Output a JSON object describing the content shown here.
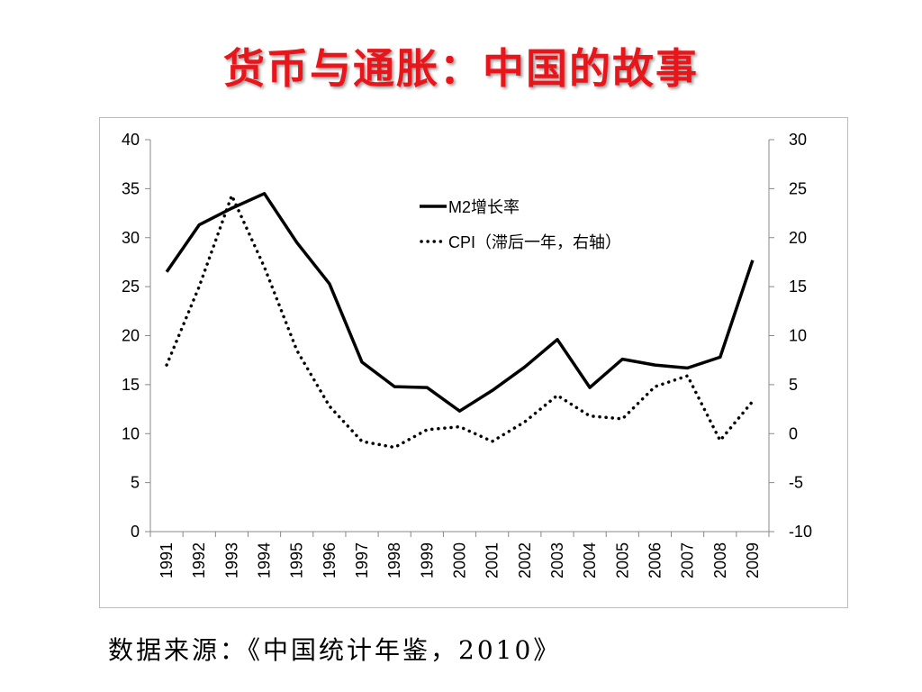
{
  "slide": {
    "title": "货币与通胀：中国的故事",
    "source": "数据来源：《中国统计年鉴，2010》"
  },
  "colors": {
    "title": "#e8161b",
    "line": "#000000"
  },
  "chart_data": {
    "type": "line",
    "categories": [
      "1991",
      "1992",
      "1993",
      "1994",
      "1995",
      "1996",
      "1997",
      "1998",
      "1999",
      "2000",
      "2001",
      "2002",
      "2003",
      "2004",
      "2005",
      "2006",
      "2007",
      "2008",
      "2009"
    ],
    "series": [
      {
        "name": "M2增长率",
        "axis": "left",
        "style": "solid",
        "values": [
          26.5,
          31.3,
          33.0,
          34.5,
          29.5,
          25.3,
          17.3,
          14.8,
          14.7,
          12.3,
          14.4,
          16.8,
          19.6,
          14.7,
          17.6,
          17.0,
          16.7,
          17.8,
          27.7
        ]
      },
      {
        "name": "CPI（滞后一年，右轴）",
        "axis": "right",
        "style": "dotted",
        "values": [
          7.0,
          15.0,
          24.3,
          17.0,
          8.5,
          2.8,
          -0.8,
          -1.4,
          0.4,
          0.7,
          -0.8,
          1.2,
          3.9,
          1.8,
          1.5,
          4.8,
          5.9,
          -0.7,
          3.3
        ]
      }
    ],
    "y_left": {
      "min": 0,
      "max": 40,
      "ticks": [
        "0",
        "5",
        "10",
        "15",
        "20",
        "25",
        "30",
        "35",
        "40"
      ]
    },
    "y_right": {
      "min": -10,
      "max": 30,
      "ticks": [
        "-10",
        "-5",
        "0",
        "5",
        "10",
        "15",
        "20",
        "25",
        "30"
      ]
    },
    "legend_position": "top-center",
    "grid": false
  }
}
